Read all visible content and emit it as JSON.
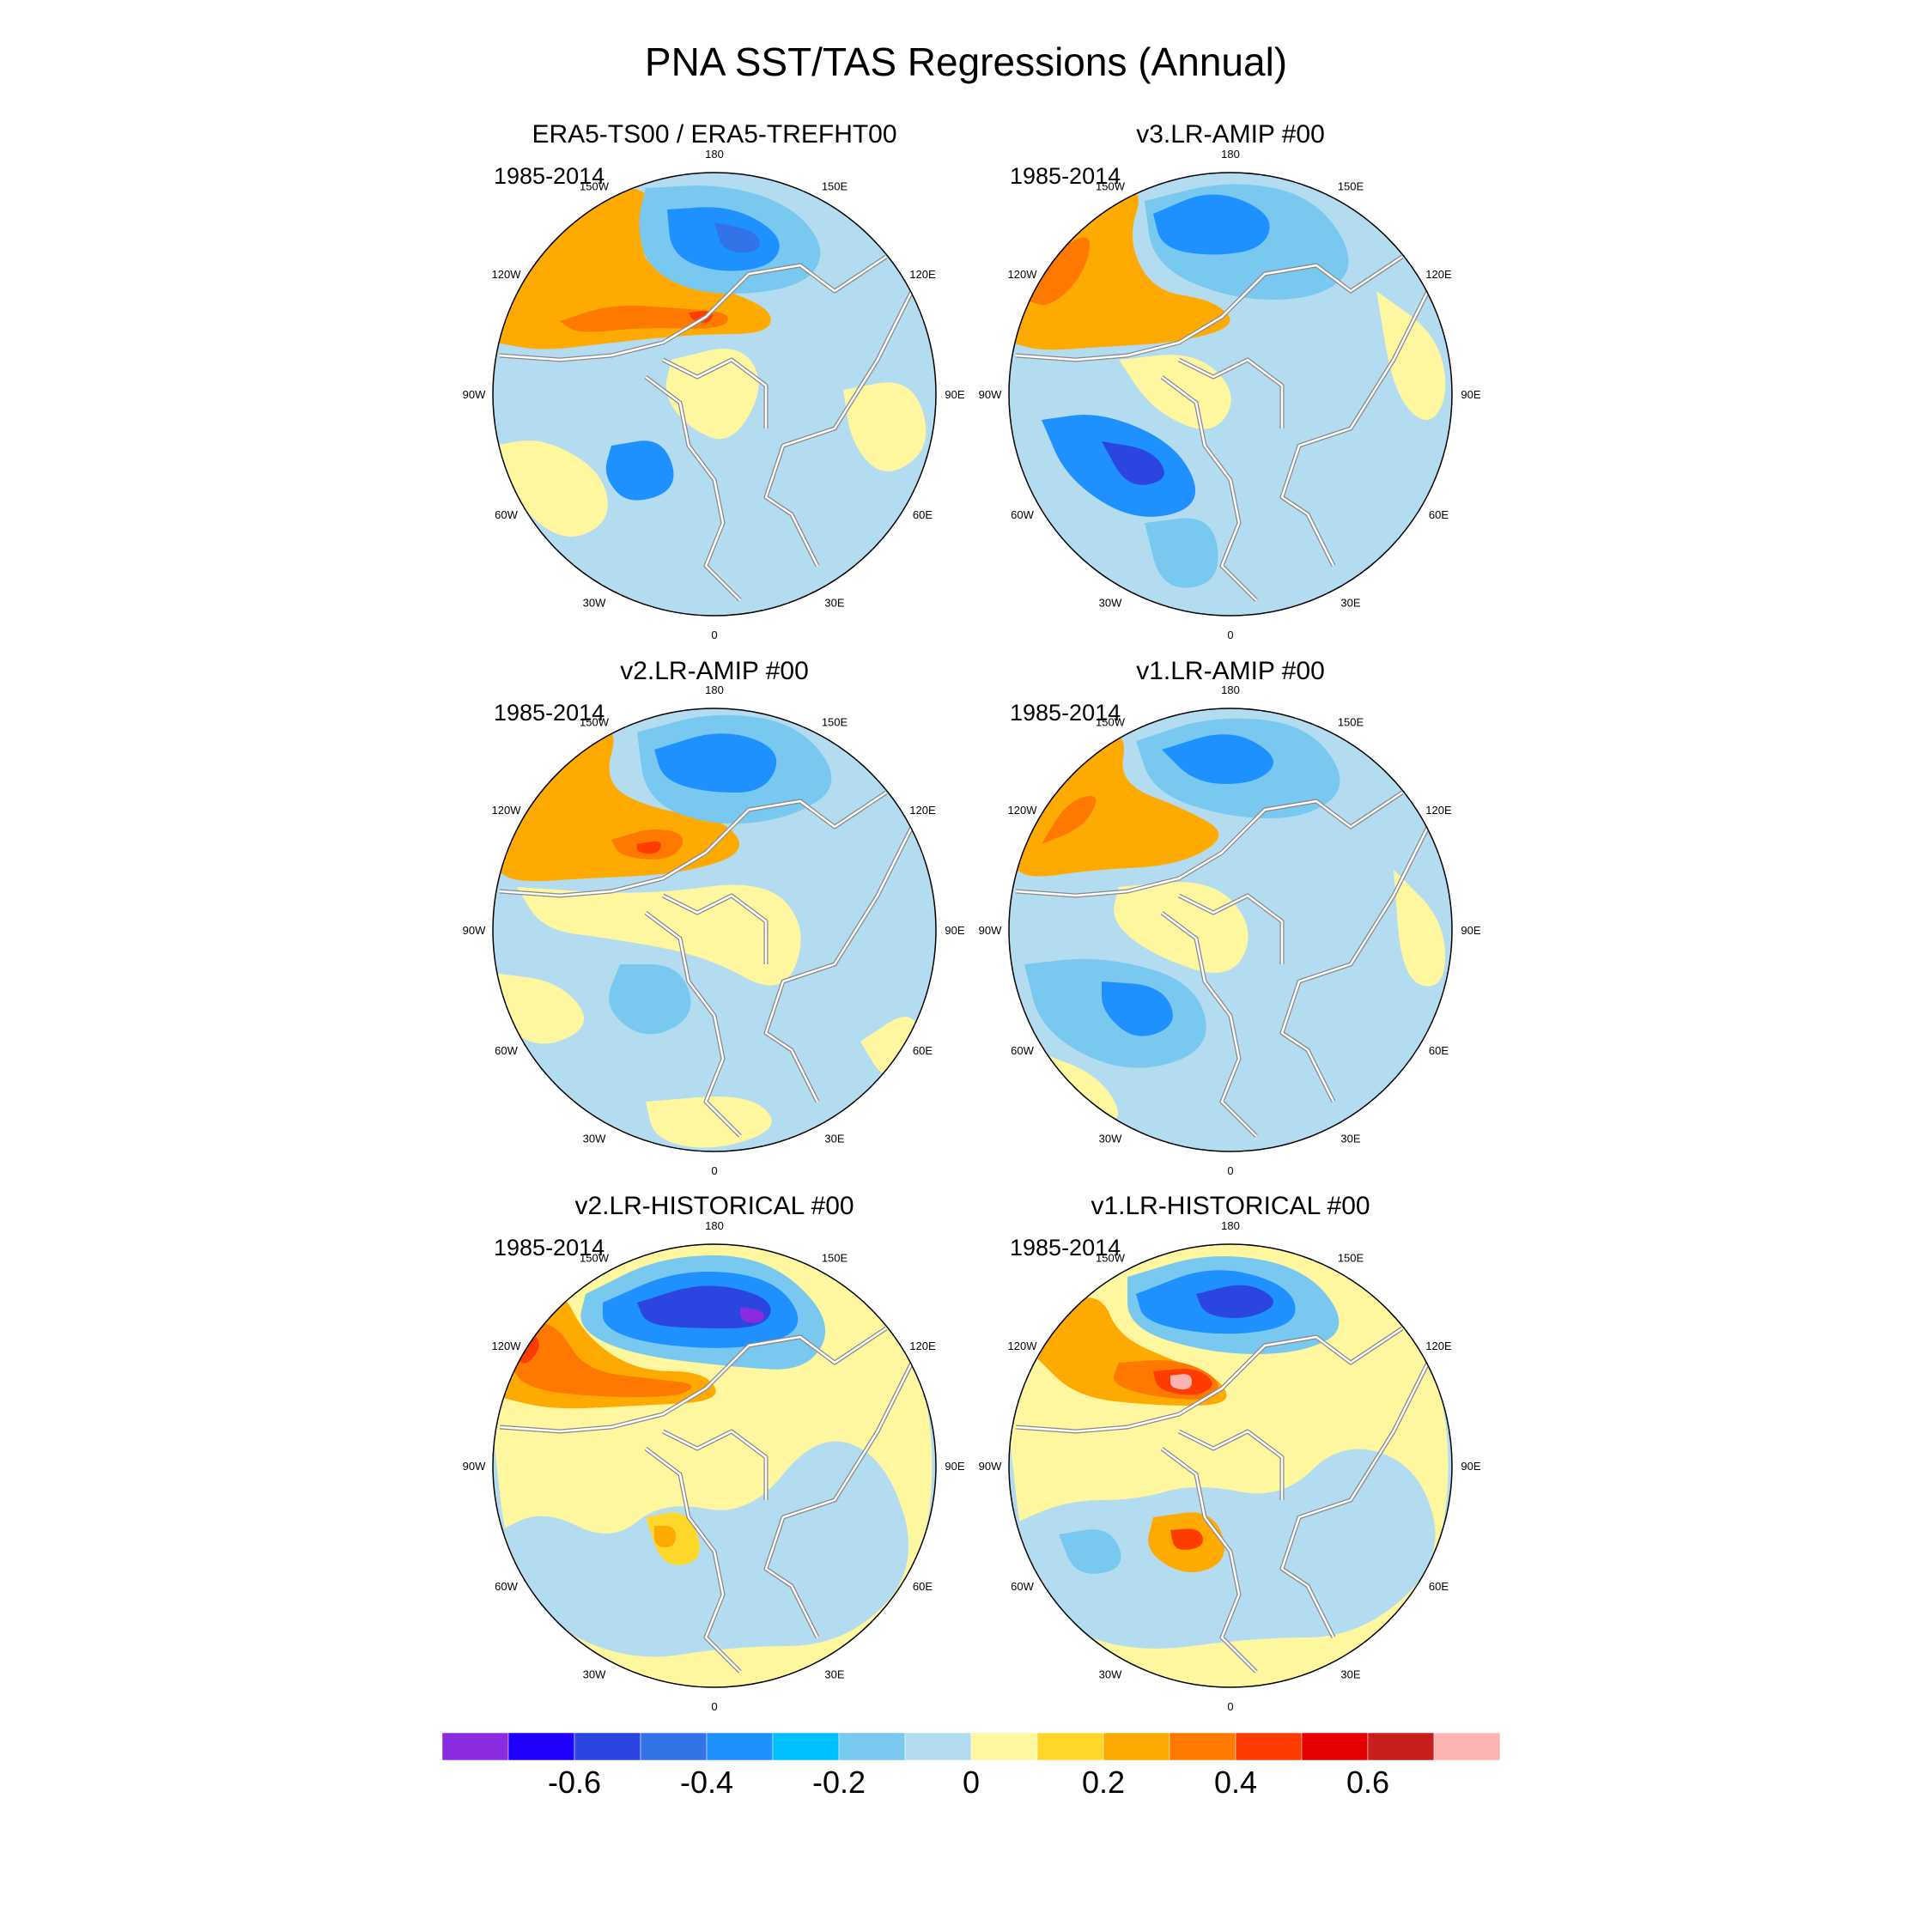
{
  "title": "PNA SST/TAS Regressions (Annual)",
  "panels": [
    {
      "title": "ERA5-TS00 / ERA5-TREFHT00",
      "period": "1985-2014"
    },
    {
      "title": "v3.LR-AMIP  #00",
      "period": "1985-2014"
    },
    {
      "title": "v2.LR-AMIP  #00",
      "period": "1985-2014"
    },
    {
      "title": "v1.LR-AMIP  #00",
      "period": "1985-2014"
    },
    {
      "title": "v2.LR-HISTORICAL  #00",
      "period": "1985-2014"
    },
    {
      "title": "v1.LR-HISTORICAL  #00",
      "period": "1985-2014"
    }
  ],
  "lon_labels": [
    "180",
    "150E",
    "120E",
    "90E",
    "60E",
    "30E",
    "0",
    "30W",
    "60W",
    "90W",
    "120W",
    "150W"
  ],
  "colorbar": {
    "colors": [
      "#8a2be2",
      "#1f00ff",
      "#2b45e0",
      "#3273e8",
      "#1e90ff",
      "#00bfff",
      "#78c8f0",
      "#b4dcf0",
      "#fff7a0",
      "#ffd72a",
      "#ffaa00",
      "#ff7800",
      "#ff3c00",
      "#e60000",
      "#c81e1e",
      "#ffb4b4"
    ],
    "tick_labels": [
      "-0.6",
      "-0.4",
      "-0.2",
      "0",
      "0.2",
      "0.4",
      "0.6"
    ]
  },
  "palette": {
    "neg_strong": "#2b45e0",
    "neg_mid": "#3273e8",
    "neg_med": "#1e90ff",
    "neg_weak": "#78c8f0",
    "neutral_neg": "#b4dcf0",
    "neutral_pos": "#fff7a0",
    "pos_weak": "#ffd72a",
    "pos_mid": "#ffaa00",
    "pos_strong": "#ff7800",
    "pos_vstrong": "#ff3c00",
    "pos_max": "#e60000",
    "extreme_neg": "#8a2be2",
    "extreme_pos": "#ffb4b4",
    "coast": "#ffffff",
    "outline": "#000000"
  }
}
